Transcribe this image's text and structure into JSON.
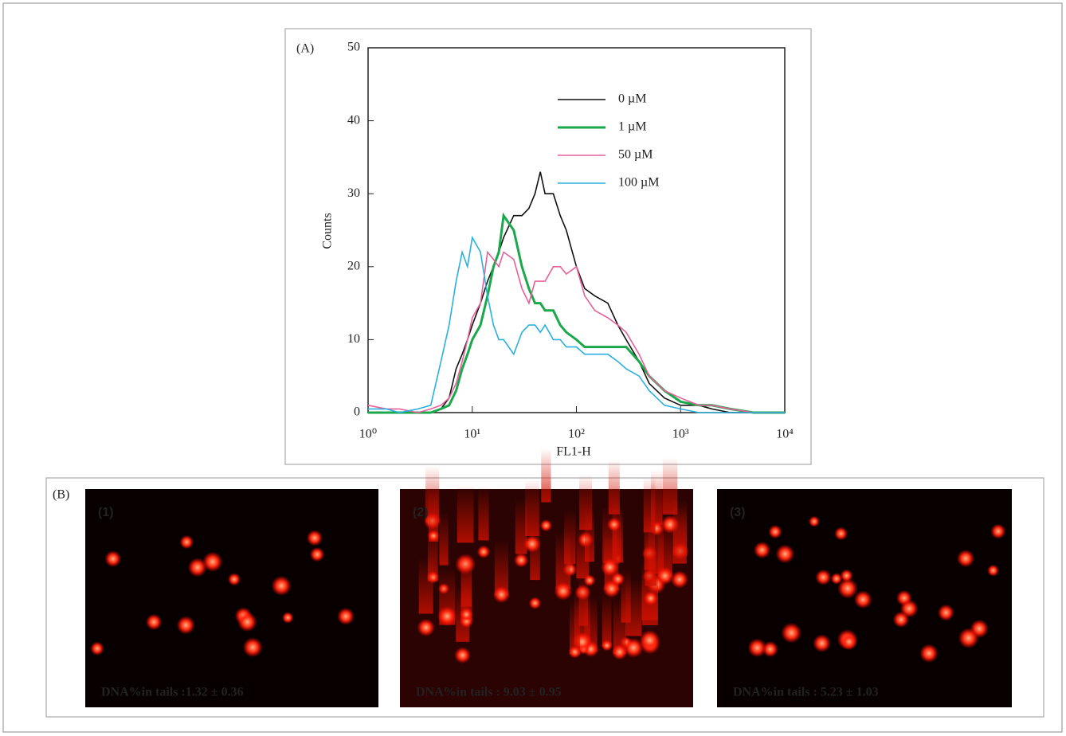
{
  "chart_data": {
    "type": "line",
    "panel_label": "(A)",
    "xlabel": "FL1-H",
    "ylabel": "Counts",
    "xscale": "log",
    "xlim": [
      1,
      10000
    ],
    "xticks": [
      {
        "value": 1,
        "label": "10⁰"
      },
      {
        "value": 10,
        "label": "10¹"
      },
      {
        "value": 100,
        "label": "10²"
      },
      {
        "value": 1000,
        "label": "10³"
      },
      {
        "value": 10000,
        "label": "10⁴"
      }
    ],
    "ylim": [
      0,
      50
    ],
    "yticks": [
      0,
      10,
      20,
      30,
      40,
      50
    ],
    "grid": false,
    "legend": "upper right",
    "x": [
      1,
      1.5,
      2,
      3,
      4,
      5,
      6,
      7,
      8,
      9,
      10,
      12,
      14,
      16,
      18,
      20,
      25,
      30,
      35,
      40,
      45,
      50,
      60,
      70,
      80,
      100,
      120,
      150,
      200,
      250,
      300,
      400,
      500,
      700,
      1000,
      1500,
      2000,
      3000,
      5000,
      10000
    ],
    "series": [
      {
        "name": "0 µM",
        "color": "#111111",
        "values": [
          0,
          0,
          0,
          0,
          0,
          0.5,
          2,
          6,
          8,
          10,
          12,
          15,
          18,
          20,
          22,
          24,
          27,
          27,
          28,
          30,
          33,
          30,
          30,
          27,
          25,
          20,
          17,
          16,
          15,
          12,
          10,
          7,
          4,
          2,
          1,
          1,
          0.5,
          0,
          0,
          0
        ]
      },
      {
        "name": "1 µM",
        "color": "#1aa84a",
        "values": [
          0,
          0,
          0,
          0,
          0,
          0.5,
          1,
          3,
          6,
          8,
          10,
          12,
          16,
          20,
          22,
          27,
          25,
          20,
          17,
          15,
          15,
          14,
          14,
          12,
          11,
          10,
          9,
          9,
          9,
          9,
          9,
          7,
          5,
          3,
          1.5,
          1,
          1,
          0.5,
          0,
          0
        ]
      },
      {
        "name": "50 µM",
        "color": "#e8609a",
        "values": [
          1,
          0.5,
          0.5,
          0,
          0.5,
          1,
          2,
          4,
          7,
          10,
          13,
          15,
          22,
          21,
          20,
          22,
          21,
          17,
          15,
          18,
          18,
          18,
          20,
          20,
          19,
          20,
          16,
          14,
          13,
          12,
          11,
          8,
          5,
          3,
          2,
          1,
          1,
          0.5,
          0,
          0
        ]
      },
      {
        "name": "100 µM",
        "color": "#2ab0e0",
        "values": [
          0.5,
          0.5,
          0,
          0.5,
          1,
          7,
          12,
          18,
          22,
          20,
          24,
          22,
          16,
          12,
          10,
          10,
          8,
          11,
          12,
          12,
          11,
          12,
          10,
          10,
          9,
          9,
          8,
          8,
          8,
          7,
          6,
          5,
          3,
          1,
          0.5,
          0,
          0,
          0,
          0,
          0
        ]
      }
    ]
  },
  "panel_b": {
    "label": "(B)",
    "images": [
      {
        "label": "(1)",
        "caption": "DNA%in tails :1.32 ± 0.36"
      },
      {
        "label": "(2)",
        "caption": "DNA%in tails : 9.03 ± 0.95"
      },
      {
        "label": "(3)",
        "caption": "DNA%in tails : 5.23 ± 1.03"
      }
    ]
  }
}
